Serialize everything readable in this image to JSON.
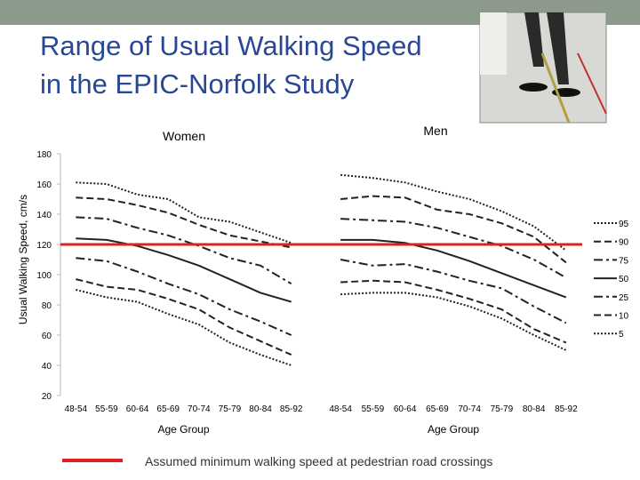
{
  "title": [
    "Range of Usual Walking Speed",
    "in the EPIC-Norfolk Study"
  ],
  "reference_line": {
    "value": 120,
    "color": "#e02020",
    "label": "Assumed minimum walking speed at pedestrian road crossings"
  },
  "chart_data": [
    {
      "type": "line",
      "title": "Women",
      "xlabel": "Age Group",
      "ylabel": "Usual Walking Speed, cm/s",
      "categories": [
        "48-54",
        "55-59",
        "60-64",
        "65-69",
        "70-74",
        "75-79",
        "80-84",
        "85-92"
      ],
      "ylim": [
        20,
        180
      ],
      "yticks": [
        20,
        40,
        60,
        80,
        100,
        120,
        140,
        160,
        180
      ],
      "series": [
        {
          "color": "#222222",
          "dash": "2,2",
          "values": [
            161,
            160,
            153,
            150,
            138,
            135,
            128,
            121
          ]
        },
        {
          "color": "#222222",
          "dash": "8,4",
          "values": [
            151,
            150,
            146,
            141,
            133,
            126,
            122,
            118
          ]
        },
        {
          "color": "#222222",
          "dash": "10,4,3,4",
          "values": [
            138,
            137,
            131,
            126,
            119,
            111,
            106,
            94
          ]
        },
        {
          "color": "#222222",
          "dash": "none",
          "values": [
            124,
            123,
            119,
            113,
            106,
            97,
            88,
            82
          ]
        },
        {
          "color": "#222222",
          "dash": "10,4,3,4",
          "values": [
            111,
            109,
            102,
            94,
            87,
            77,
            69,
            60
          ]
        },
        {
          "color": "#222222",
          "dash": "8,4",
          "values": [
            97,
            92,
            90,
            84,
            77,
            65,
            56,
            47
          ]
        },
        {
          "color": "#222222",
          "dash": "2,2",
          "values": [
            90,
            85,
            82,
            74,
            67,
            55,
            47,
            40
          ]
        }
      ]
    },
    {
      "type": "line",
      "title": "Men",
      "xlabel": "Age Group",
      "categories": [
        "48-54",
        "55-59",
        "60-64",
        "65-69",
        "70-74",
        "75-79",
        "80-84",
        "85-92"
      ],
      "ylim": [
        20,
        180
      ],
      "series": [
        {
          "name": "95",
          "color": "#222222",
          "dash": "2,2",
          "values": [
            166,
            164,
            161,
            155,
            150,
            142,
            132,
            116
          ]
        },
        {
          "name": "90",
          "color": "#222222",
          "dash": "8,4",
          "values": [
            150,
            152,
            151,
            143,
            140,
            134,
            125,
            108
          ]
        },
        {
          "name": "75",
          "color": "#222222",
          "dash": "10,4,3,4",
          "values": [
            137,
            136,
            135,
            131,
            125,
            119,
            110,
            98
          ]
        },
        {
          "name": "50",
          "color": "#222222",
          "dash": "none",
          "values": [
            123,
            123,
            121,
            116,
            109,
            101,
            93,
            85
          ]
        },
        {
          "name": "25",
          "color": "#222222",
          "dash": "10,4,3,4",
          "values": [
            110,
            106,
            107,
            102,
            96,
            91,
            79,
            68
          ]
        },
        {
          "name": "10",
          "color": "#222222",
          "dash": "8,4",
          "values": [
            95,
            96,
            95,
            90,
            84,
            77,
            64,
            55
          ]
        },
        {
          "name": "5",
          "color": "#222222",
          "dash": "2,2",
          "values": [
            87,
            88,
            88,
            85,
            79,
            71,
            60,
            50
          ]
        }
      ]
    }
  ]
}
